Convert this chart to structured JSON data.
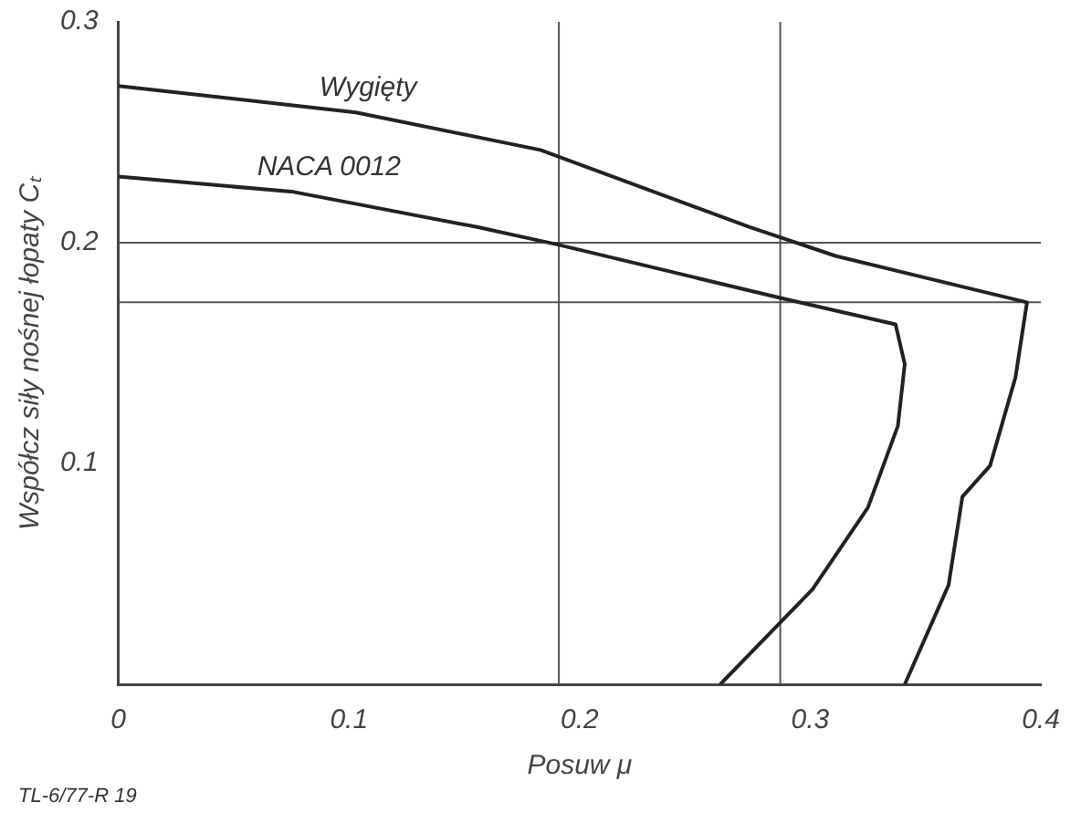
{
  "chart_data": {
    "type": "line",
    "xlabel": "Posuw μ",
    "ylabel": "Współcz siły nośnej łopaty Cₜ",
    "xlim": [
      0,
      0.4
    ],
    "ylim": [
      0,
      0.3
    ],
    "xticks": [
      0,
      0.1,
      0.2,
      0.3,
      0.4
    ],
    "yticks": [
      0.1,
      0.2,
      0.3
    ],
    "grid": false,
    "legend": false,
    "marker": "none",
    "line_style": "solid",
    "series": [
      {
        "name": "Wygięty",
        "color": "#222222",
        "x": [
          0,
          0.103,
          0.183,
          0.274,
          0.311,
          0.394,
          0.389,
          0.378,
          0.366,
          0.36,
          0.341
        ],
        "values": [
          0.271,
          0.259,
          0.242,
          0.207,
          0.194,
          0.173,
          0.139,
          0.099,
          0.085,
          0.045,
          0
        ]
      },
      {
        "name": "NACA 0012",
        "color": "#222222",
        "x": [
          0,
          0.076,
          0.156,
          0.191,
          0.287,
          0.337,
          0.341,
          0.338,
          0.325,
          0.301,
          0.261
        ],
        "values": [
          0.23,
          0.223,
          0.207,
          0.199,
          0.175,
          0.163,
          0.145,
          0.117,
          0.08,
          0.043,
          0
        ]
      }
    ],
    "ref_lines": [
      {
        "axis": "y",
        "value": 0.2,
        "color": "#555555"
      },
      {
        "axis": "y",
        "value": 0.173,
        "color": "#555555"
      },
      {
        "axis": "x",
        "value": 0.191,
        "color": "#555555"
      },
      {
        "axis": "x",
        "value": 0.287,
        "color": "#555555"
      }
    ],
    "annotations": [
      "TL-6/77-R 19"
    ]
  }
}
